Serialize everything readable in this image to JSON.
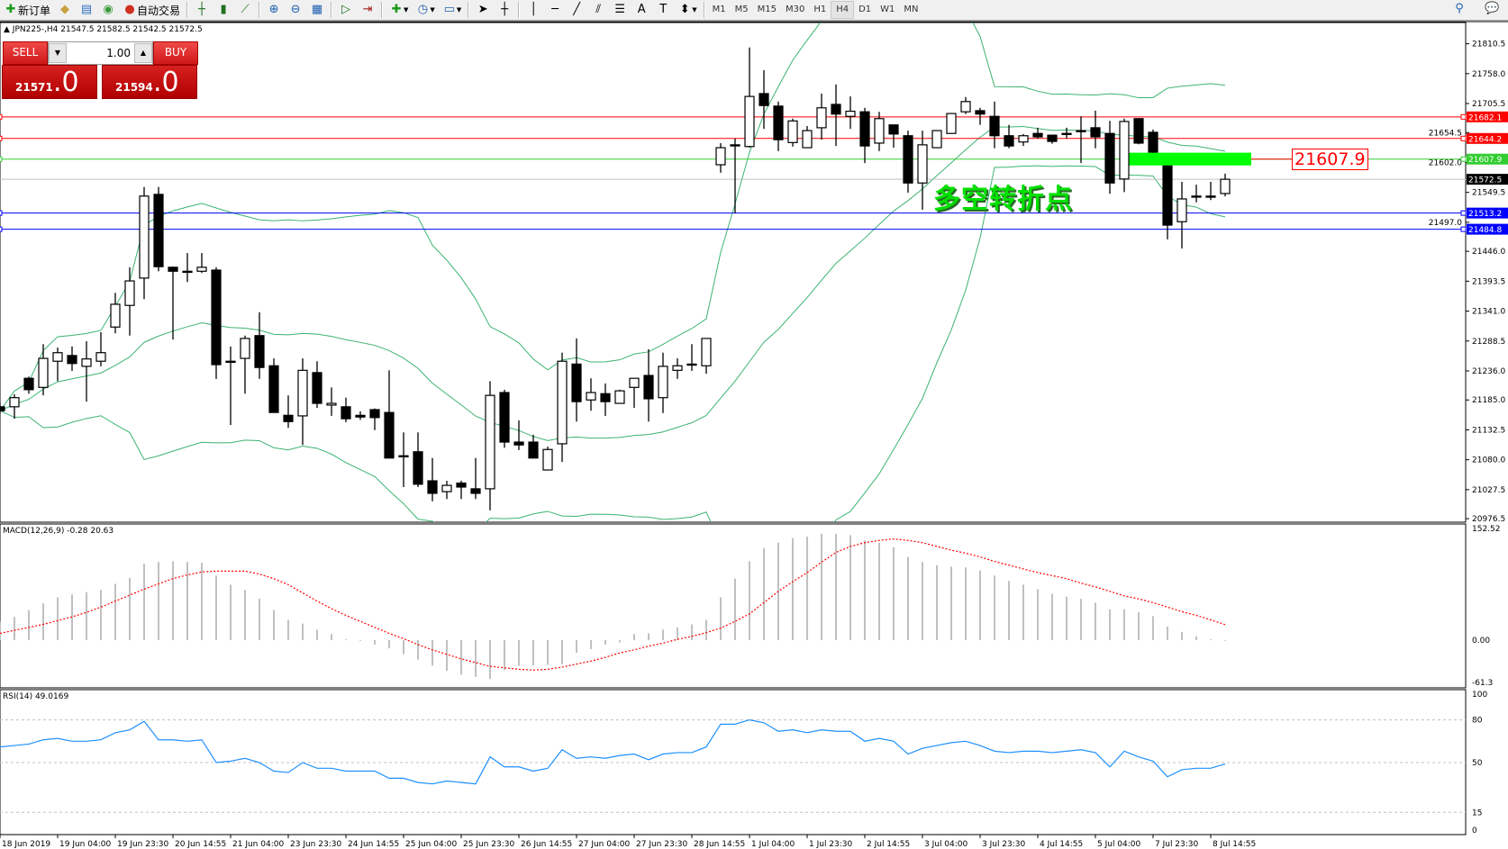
{
  "toolbar": {
    "new_order_label": "新订单",
    "auto_trading_label": "自动交易",
    "timeframes": [
      "M1",
      "M5",
      "M15",
      "M30",
      "H1",
      "H4",
      "D1",
      "W1",
      "MN"
    ],
    "active_timeframe": "H4",
    "icons": [
      "new-order-icon",
      "history-center-icon",
      "profiles-icon",
      "signals-icon",
      "auto-trading-icon",
      "bar-chart-icon",
      "candlestick-icon",
      "line-chart-icon",
      "zoom-in-icon",
      "zoom-out-icon",
      "tile-windows-icon",
      "autoscroll-icon",
      "chart-shift-icon",
      "indicators-icon",
      "periods-icon",
      "templates-icon",
      "cursor-icon",
      "crosshair-icon",
      "vertical-line-icon",
      "horizontal-line-icon",
      "trendline-icon",
      "equidistant-channel-icon",
      "fibonacci-icon",
      "text-icon",
      "text-label-icon",
      "arrows-icon",
      "search-icon",
      "chat-icon"
    ]
  },
  "chart": {
    "title": "JPN225-,H4  21547.5 21582.5 21542.5 21572.5",
    "trade_panel": {
      "sell_label": "SELL",
      "buy_label": "BUY",
      "lot": "1.00",
      "sell_price_main": "21571",
      "sell_price_big": ".0",
      "buy_price_main": "21594",
      "buy_price_big": ".0"
    },
    "annotation_text": "多空转折点",
    "annotation_price": "21607.9",
    "colors": {
      "bull": "#ffffff",
      "bear": "#000000",
      "bands": "#3cb371",
      "macd_hist": "#c0c0c0",
      "macd_signal": "#ff0000",
      "rsi": "#1e90ff",
      "highlight": "#00ff00"
    }
  },
  "chart_data": [
    {
      "type": "candlestick",
      "symbol": "JPN225-",
      "timeframe": "H4",
      "ylim": [
        20976.5,
        21810.5
      ],
      "y_ticks": [
        "21810.5",
        "21758.0",
        "21705.5",
        "21654.5",
        "21602.0",
        "21549.5",
        "21497.0",
        "21446.0",
        "21393.5",
        "21341.0",
        "21288.5",
        "21236.0",
        "21185.0",
        "21132.5",
        "21080.0",
        "21027.5",
        "20976.5"
      ],
      "x_tick_labels": [
        "18 Jun 2019",
        "19 Jun 04:00",
        "19 Jun 23:30",
        "20 Jun 14:55",
        "21 Jun 04:00",
        "23 Jun 23:30",
        "24 Jun 14:55",
        "25 Jun 04:00",
        "25 Jun 23:30",
        "26 Jun 14:55",
        "27 Jun 04:00",
        "27 Jun 23:30",
        "28 Jun 14:55",
        "1 Jul 04:00",
        "1 Jul 23:30",
        "2 Jul 14:55",
        "3 Jul 04:00",
        "3 Jul 23:30",
        "4 Jul 14:55",
        "5 Jul 04:00",
        "7 Jul 23:30",
        "8 Jul 14:55"
      ],
      "ohlc": [
        [
          21173,
          21180,
          21160,
          21166
        ],
        [
          21173,
          21195,
          21152,
          21189
        ],
        [
          21223,
          21226,
          21196,
          21203
        ],
        [
          21207,
          21283,
          21193,
          21258
        ],
        [
          21253,
          21277,
          21218,
          21268
        ],
        [
          21263,
          21279,
          21236,
          21249
        ],
        [
          21244,
          21288,
          21182,
          21257
        ],
        [
          21253,
          21304,
          21244,
          21268
        ],
        [
          21313,
          21373,
          21302,
          21353
        ],
        [
          21351,
          21418,
          21298,
          21394
        ],
        [
          21399,
          21559,
          21362,
          21543
        ],
        [
          21546,
          21559,
          21411,
          21419
        ],
        [
          21418,
          21419,
          21291,
          21411
        ],
        [
          21411,
          21443,
          21392,
          21411
        ],
        [
          21411,
          21443,
          21408,
          21418
        ],
        [
          21413,
          21418,
          21222,
          21247
        ],
        [
          21253,
          21279,
          21141,
          21253
        ],
        [
          21258,
          21298,
          21196,
          21293
        ],
        [
          21298,
          21339,
          21222,
          21242
        ],
        [
          21245,
          21258,
          21163,
          21163
        ],
        [
          21158,
          21193,
          21136,
          21147
        ],
        [
          21157,
          21258,
          21106,
          21237
        ],
        [
          21233,
          21253,
          21171,
          21179
        ],
        [
          21176,
          21207,
          21157,
          21179
        ],
        [
          21173,
          21189,
          21146,
          21152
        ],
        [
          21158,
          21165,
          21150,
          21155
        ],
        [
          21168,
          21170,
          21132,
          21154
        ],
        [
          21163,
          21237,
          21083,
          21083
        ],
        [
          21087,
          21128,
          21032,
          21087
        ],
        [
          21094,
          21128,
          21032,
          21037
        ],
        [
          21043,
          21083,
          21007,
          21021
        ],
        [
          21024,
          21043,
          21011,
          21035
        ],
        [
          21039,
          21043,
          21011,
          21032
        ],
        [
          21029,
          21083,
          21011,
          21021
        ],
        [
          21029,
          21218,
          20991,
          21193
        ],
        [
          21198,
          21203,
          21101,
          21111
        ],
        [
          21111,
          21149,
          21097,
          21106
        ],
        [
          21111,
          21124,
          21083,
          21083
        ],
        [
          21062,
          21103,
          21062,
          21098
        ],
        [
          21108,
          21268,
          21076,
          21253
        ],
        [
          21248,
          21293,
          21147,
          21182
        ],
        [
          21185,
          21223,
          21166,
          21198
        ],
        [
          21196,
          21214,
          21157,
          21182
        ],
        [
          21179,
          21203,
          21179,
          21201
        ],
        [
          21207,
          21223,
          21171,
          21223
        ],
        [
          21228,
          21274,
          21147,
          21187
        ],
        [
          21189,
          21268,
          21162,
          21244
        ],
        [
          21237,
          21258,
          21222,
          21245
        ],
        [
          21248,
          21283,
          21236,
          21248
        ],
        [
          21245,
          21293,
          21231,
          21293
        ],
        [
          21598,
          21636,
          21584,
          21628
        ],
        [
          21633,
          21644,
          21513,
          21633
        ],
        [
          21630,
          21804,
          21628,
          21718
        ],
        [
          21723,
          21764,
          21661,
          21702
        ],
        [
          21701,
          21709,
          21622,
          21642
        ],
        [
          21637,
          21679,
          21630,
          21675
        ],
        [
          21628,
          21666,
          21628,
          21658
        ],
        [
          21663,
          21723,
          21642,
          21698
        ],
        [
          21704,
          21739,
          21631,
          21687
        ],
        [
          21683,
          21718,
          21661,
          21692
        ],
        [
          21691,
          21698,
          21601,
          21631
        ],
        [
          21636,
          21691,
          21622,
          21679
        ],
        [
          21668,
          21668,
          21628,
          21652
        ],
        [
          21649,
          21658,
          21549,
          21566
        ],
        [
          21566,
          21658,
          21519,
          21633
        ],
        [
          21628,
          21658,
          21628,
          21658
        ],
        [
          21653,
          21688,
          21653,
          21688
        ],
        [
          21691,
          21717,
          21687,
          21709
        ],
        [
          21693,
          21698,
          21668,
          21687
        ],
        [
          21683,
          21709,
          21627,
          21649
        ],
        [
          21649,
          21668,
          21627,
          21631
        ],
        [
          21638,
          21652,
          21631,
          21649
        ],
        [
          21653,
          21663,
          21644,
          21647
        ],
        [
          21650,
          21650,
          21635,
          21639
        ],
        [
          21653,
          21663,
          21644,
          21653
        ],
        [
          21658,
          21683,
          21601,
          21658
        ],
        [
          21663,
          21693,
          21627,
          21647
        ],
        [
          21653,
          21675,
          21547,
          21566
        ],
        [
          21573,
          21679,
          21550,
          21674
        ],
        [
          21679,
          21679,
          21634,
          21636
        ],
        [
          21655,
          21660,
          21615,
          21620
        ],
        [
          21596,
          21610,
          21467,
          21492
        ],
        [
          21498,
          21568,
          21451,
          21538
        ],
        [
          21543,
          21563,
          21532,
          21543
        ],
        [
          21543,
          21568,
          21536,
          21541
        ],
        [
          21547.5,
          21582.5,
          21542.5,
          21572.5
        ]
      ],
      "bollinger": {
        "period": 20,
        "deviation": 2
      },
      "horizontal_lines": [
        {
          "price": "21682.1",
          "color": "#ff0000"
        },
        {
          "price": "21644.2",
          "color": "#ff0000"
        },
        {
          "price": "21607.9",
          "color": "#32cd32"
        },
        {
          "price": "21572.5",
          "color": "#000000",
          "line_color": "#c0c0c0"
        },
        {
          "price": "21513.2",
          "color": "#0000ff"
        },
        {
          "price": "21484.8",
          "color": "#0000ff"
        }
      ],
      "highlight_zone": {
        "from_bar": 78,
        "price_low": 21597,
        "price_high": 21619
      }
    },
    {
      "type": "bar",
      "title": "MACD(12,26,9) -0.28 20.63",
      "ylim": [
        -61.3,
        152.52
      ],
      "y_ticks": [
        "152.52",
        "0.00",
        "-61.3"
      ],
      "histogram": [
        25,
        31,
        40,
        49,
        57,
        61,
        64,
        67,
        75,
        83,
        102,
        104,
        105,
        104,
        103,
        86,
        74,
        67,
        55,
        40,
        27,
        22,
        14,
        8,
        1,
        0,
        -6,
        -11,
        -19,
        -26,
        -34,
        -41,
        -46,
        -49,
        -52,
        -40,
        -34,
        -34,
        -33,
        -32,
        -17,
        -12,
        -6,
        -3,
        8,
        9,
        14,
        17,
        21,
        27,
        57,
        82,
        105,
        123,
        130,
        136,
        138,
        142,
        142,
        140,
        133,
        130,
        124,
        111,
        104,
        100,
        98,
        97,
        93,
        86,
        79,
        74,
        68,
        62,
        58,
        55,
        50,
        41,
        41,
        37,
        32,
        18,
        11,
        5,
        1,
        -0.28
      ],
      "signal": [
        9,
        13,
        17,
        21,
        26,
        31,
        37,
        44,
        52,
        60,
        68,
        75,
        82,
        87,
        91,
        92,
        92,
        92,
        88,
        82,
        74,
        63,
        52,
        42,
        33,
        25,
        17,
        9,
        2,
        -6,
        -13,
        -19,
        -25,
        -30,
        -35,
        -37,
        -39,
        -40,
        -39,
        -36,
        -32,
        -28,
        -23,
        -17,
        -13,
        -8,
        -4,
        1,
        5,
        10,
        16,
        25,
        35,
        50,
        65,
        78,
        90,
        104,
        117,
        125,
        130,
        133,
        135,
        133,
        130,
        125,
        120,
        116,
        111,
        105,
        100,
        95,
        90,
        86,
        82,
        76,
        71,
        65,
        59,
        55,
        50,
        44,
        38,
        33,
        27,
        20.63
      ]
    },
    {
      "type": "line",
      "title": "RSI(14) 49.0169",
      "ylim": [
        0,
        100
      ],
      "y_ticks": [
        "100",
        "80",
        "50",
        "15",
        "0"
      ],
      "levels": [
        80,
        50,
        15
      ],
      "values": [
        61,
        62,
        63,
        66,
        67,
        65,
        65,
        66,
        71,
        73,
        79,
        66,
        66,
        65,
        66,
        50,
        51,
        53,
        50,
        44,
        43,
        50,
        46,
        46,
        44,
        44,
        44,
        39,
        39,
        36,
        35,
        37,
        36,
        35,
        54,
        47,
        47,
        44,
        46,
        59,
        53,
        54,
        53,
        55,
        56,
        52,
        56,
        57,
        57,
        61,
        77,
        77,
        80,
        78,
        72,
        73,
        71,
        73,
        72,
        72,
        65,
        67,
        65,
        56,
        60,
        62,
        64,
        65,
        62,
        58,
        57,
        58,
        58,
        57,
        58,
        59,
        57,
        47,
        58,
        54,
        51,
        40,
        45,
        46,
        46,
        49.0169
      ]
    }
  ]
}
